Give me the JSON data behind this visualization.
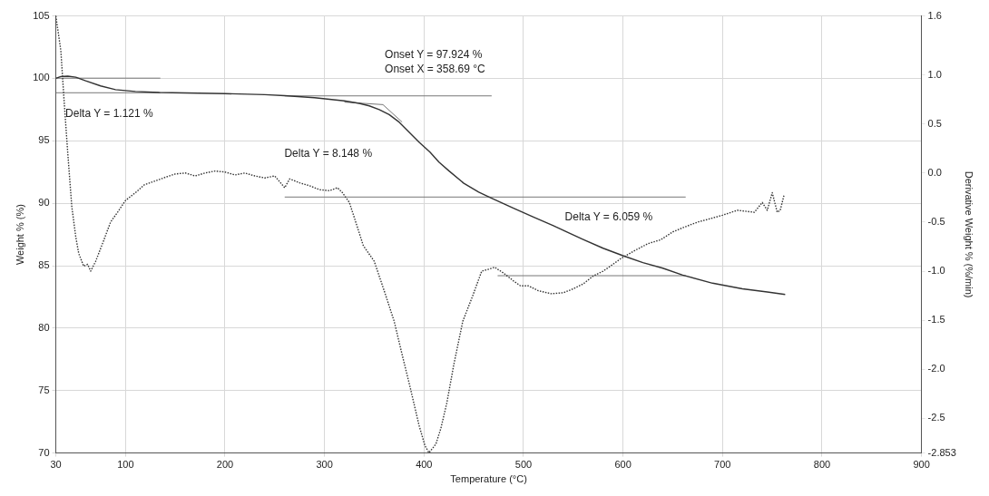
{
  "chart_data": {
    "type": "line",
    "xlabel": "Temperature (°C)",
    "ylabel": "Weight % (%)",
    "y2label": "Derivative Weight % (%/min)",
    "xlim": [
      30,
      900
    ],
    "xticks": [
      30,
      100,
      200,
      300,
      400,
      500,
      600,
      700,
      800,
      900
    ],
    "ylim": [
      70,
      105
    ],
    "yticks": [
      70,
      75,
      80,
      85,
      90,
      95,
      100,
      105
    ],
    "y2lim": [
      -2.853,
      1.6
    ],
    "y2ticks": [
      -2.853,
      -2.5,
      {
        "value": -2,
        "label": "-2.0"
      },
      -1.5,
      {
        "value": -1,
        "label": "-1.0"
      },
      -0.5,
      {
        "value": 0,
        "label": "0.0"
      },
      0.5,
      {
        "value": 1,
        "label": "1.0"
      },
      1.6
    ],
    "grid": true,
    "legend": false,
    "marker": "none",
    "annotations": [
      "Onset Y = 97.924 %",
      "Onset X = 358.69 °C",
      "Delta Y = 1.121 %",
      "Delta Y = 8.148 %",
      "Delta Y = 6.059 %"
    ],
    "series": [
      {
        "color": "#333333",
        "line_style": "solid",
        "x": [
          30,
          35,
          42,
          50,
          60,
          75,
          90,
          110,
          134,
          160,
          200,
          240,
          260,
          290,
          320,
          335,
          345,
          355,
          365,
          375,
          385,
          395,
          406,
          415,
          425,
          440,
          455,
          468,
          490,
          510,
          530,
          560,
          580,
          600,
          620,
          640,
          660,
          690,
          720,
          745,
          763
        ],
        "values": [
          100.0,
          100.15,
          100.18,
          100.1,
          99.8,
          99.4,
          99.1,
          98.95,
          98.87,
          98.83,
          98.78,
          98.7,
          98.62,
          98.45,
          98.2,
          98.0,
          97.8,
          97.5,
          97.1,
          96.5,
          95.7,
          94.9,
          94.1,
          93.3,
          92.6,
          91.6,
          90.9,
          90.4,
          89.6,
          88.9,
          88.2,
          87.1,
          86.4,
          85.8,
          85.25,
          84.8,
          84.25,
          83.6,
          83.15,
          82.9,
          82.7
        ]
      },
      {
        "axis": "y2",
        "color": "#333333",
        "line_style": "dotted",
        "x": [
          30,
          35,
          38,
          42,
          46,
          50,
          53,
          58,
          62,
          65,
          70,
          78,
          85,
          92,
          100,
          110,
          119,
          130,
          141,
          150,
          160,
          170,
          180,
          190,
          200,
          210,
          220,
          230,
          240,
          250,
          260,
          265,
          275,
          285,
          295,
          305,
          313,
          318,
          325,
          333,
          339,
          350,
          360,
          370,
          378,
          386,
          395,
          401,
          405,
          409,
          412,
          417,
          423,
          430,
          439,
          449,
          458,
          465,
          471,
          480,
          490,
          497,
          505,
          515,
          528,
          540,
          550,
          560,
          570,
          580,
          590,
          598,
          610,
          625,
          638,
          650,
          662,
          675,
          686,
          700,
          715,
          732,
          740,
          745,
          750,
          755,
          758,
          762
        ],
        "values": [
          1.6,
          1.25,
          0.78,
          0.2,
          -0.34,
          -0.65,
          -0.82,
          -0.95,
          -0.93,
          -1.0,
          -0.9,
          -0.69,
          -0.5,
          -0.4,
          -0.28,
          -0.2,
          -0.12,
          -0.08,
          -0.04,
          -0.01,
          0.0,
          -0.03,
          0.0,
          0.02,
          0.01,
          -0.02,
          0.0,
          -0.03,
          -0.05,
          -0.03,
          -0.15,
          -0.06,
          -0.1,
          -0.13,
          -0.17,
          -0.18,
          -0.15,
          -0.2,
          -0.3,
          -0.55,
          -0.74,
          -0.9,
          -1.2,
          -1.51,
          -1.85,
          -2.18,
          -2.57,
          -2.78,
          -2.85,
          -2.8,
          -2.76,
          -2.6,
          -2.34,
          -1.95,
          -1.51,
          -1.25,
          -1.0,
          -0.98,
          -0.96,
          -1.02,
          -1.1,
          -1.15,
          -1.15,
          -1.2,
          -1.23,
          -1.22,
          -1.18,
          -1.13,
          -1.05,
          -1.0,
          -0.93,
          -0.87,
          -0.8,
          -0.72,
          -0.68,
          -0.6,
          -0.55,
          -0.5,
          -0.47,
          -0.43,
          -0.38,
          -0.4,
          -0.3,
          -0.38,
          -0.2,
          -0.4,
          -0.38,
          -0.22
        ]
      },
      {
        "color": "#777777",
        "line_style": "solid",
        "x": [
          30,
          135
        ],
        "values": [
          100.02,
          100.02
        ]
      },
      {
        "color": "#777777",
        "line_style": "solid",
        "x": [
          30,
          135
        ],
        "values": [
          98.85,
          98.85
        ]
      },
      {
        "color": "#777777",
        "line_style": "solid",
        "x": [
          260,
          468
        ],
        "values": [
          98.6,
          98.6
        ]
      },
      {
        "color": "#777777",
        "line_style": "solid",
        "x": [
          320,
          358.69,
          378
        ],
        "values": [
          98.1,
          97.9,
          96.5
        ]
      },
      {
        "color": "#777777",
        "line_style": "solid",
        "x": [
          260,
          663
        ],
        "values": [
          90.5,
          90.5
        ]
      },
      {
        "color": "#777777",
        "line_style": "solid",
        "x": [
          474,
          663
        ],
        "values": [
          84.2,
          84.2
        ]
      }
    ]
  }
}
